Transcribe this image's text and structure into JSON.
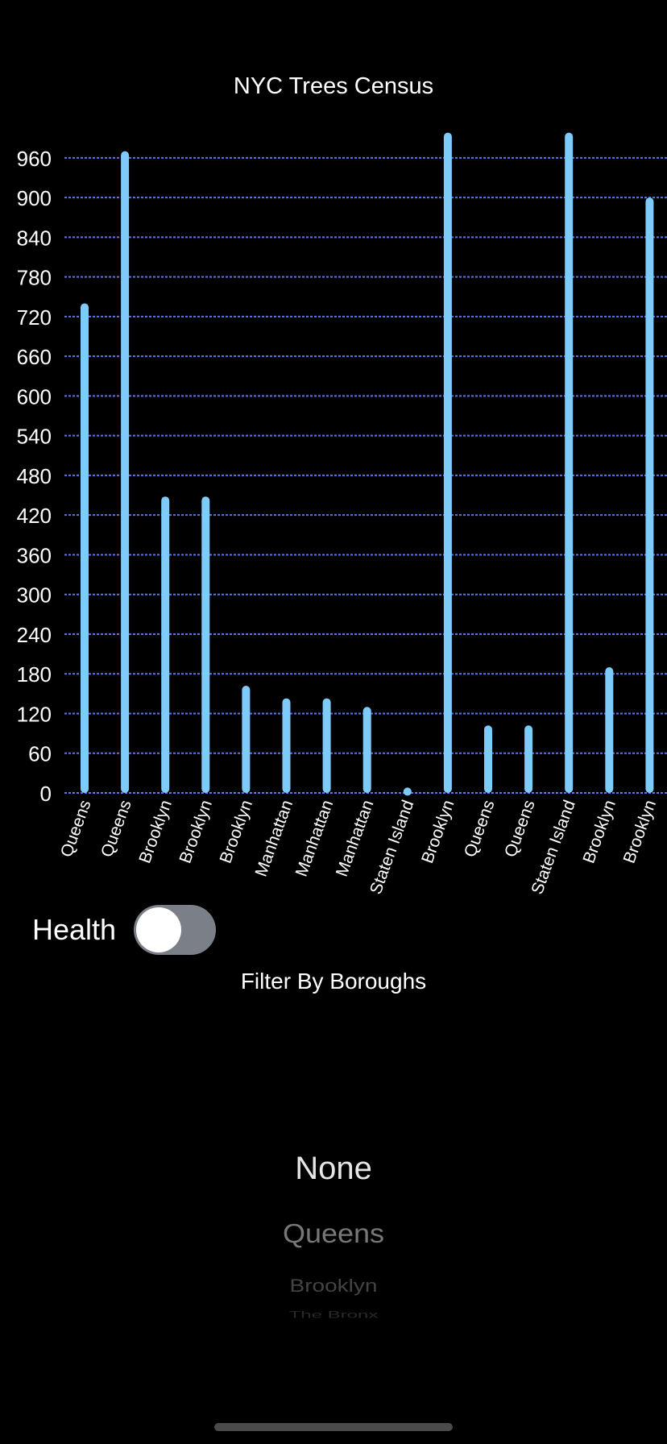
{
  "chart_data": {
    "type": "bar",
    "title": "NYC Trees Census",
    "categories": [
      "Queens",
      "Queens",
      "Brooklyn",
      "Brooklyn",
      "Brooklyn",
      "Manhattan",
      "Manhattan",
      "Manhattan",
      "Staten Island",
      "Brooklyn",
      "Queens",
      "Queens",
      "Staten Island",
      "Brooklyn",
      "Brooklyn"
    ],
    "values": [
      740,
      970,
      448,
      448,
      162,
      143,
      143,
      130,
      8,
      998,
      102,
      102,
      998,
      190,
      900
    ],
    "ylim": [
      0,
      1000
    ],
    "yticks": [
      0,
      60,
      120,
      180,
      240,
      300,
      360,
      420,
      480,
      540,
      600,
      660,
      720,
      780,
      840,
      900,
      960
    ],
    "grid": true,
    "bar_color": "#7ecbfa",
    "grid_color": "#5b76e8"
  },
  "toggle": {
    "label": "Health",
    "on": false
  },
  "filter": {
    "title": "Filter By Boroughs",
    "selected": "None",
    "options": [
      "None",
      "Queens",
      "Brooklyn",
      "The Bronx"
    ]
  }
}
